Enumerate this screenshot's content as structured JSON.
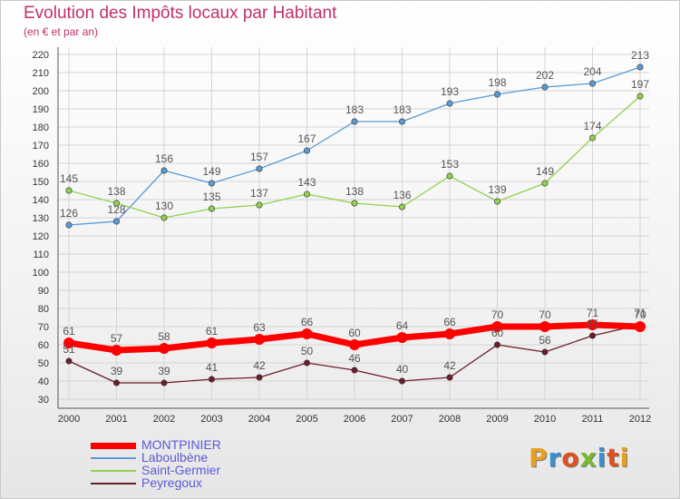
{
  "header": {
    "title": "Evolution des Impôts locaux par Habitant",
    "subtitle": "(en € et par an)"
  },
  "logo": {
    "text": "Proxiti",
    "colors": [
      "#e8a020",
      "#3a8fd0",
      "#e05020",
      "#7ab830",
      "#3a8fd0",
      "#e05020",
      "#e8a020"
    ]
  },
  "chart_data": {
    "type": "line",
    "title": "Evolution des Impôts locaux par Habitant",
    "subtitle": "(en € et par an)",
    "xlabel": "",
    "ylabel": "",
    "x": [
      "2000",
      "2001",
      "2002",
      "2003",
      "2004",
      "2005",
      "2006",
      "2007",
      "2008",
      "2009",
      "2010",
      "2011",
      "2012"
    ],
    "ylim": [
      30,
      220
    ],
    "yticks": [
      30,
      40,
      50,
      60,
      70,
      80,
      90,
      100,
      110,
      120,
      130,
      140,
      150,
      160,
      170,
      180,
      190,
      200,
      210,
      220
    ],
    "grid": true,
    "legend_position": "bottom-left",
    "series": [
      {
        "name": "MONTPINIER",
        "color": "#ff0000",
        "values": [
          61,
          57,
          58,
          61,
          63,
          66,
          60,
          64,
          66,
          70,
          70,
          71,
          70
        ]
      },
      {
        "name": "Laboulbène",
        "color": "#5b9bd5",
        "values": [
          126,
          128,
          156,
          149,
          157,
          167,
          183,
          183,
          193,
          198,
          202,
          204,
          213
        ]
      },
      {
        "name": "Saint-Germier",
        "color": "#92d050",
        "values": [
          145,
          138,
          130,
          135,
          137,
          143,
          138,
          136,
          153,
          139,
          149,
          174,
          197
        ]
      },
      {
        "name": "Peyregoux",
        "color": "#6b1e2a",
        "values": [
          51,
          39,
          39,
          41,
          42,
          50,
          46,
          40,
          42,
          60,
          56,
          65,
          71
        ]
      }
    ]
  }
}
